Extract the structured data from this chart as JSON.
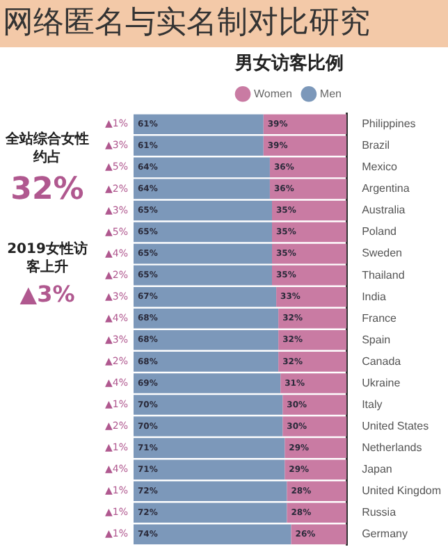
{
  "chart_data": {
    "type": "bar",
    "orientation": "horizontal",
    "stacked": true,
    "title": "网络匿名与实名制对比研究",
    "subtitle": "男女访客比例",
    "categories": [
      "Philippines",
      "Brazil",
      "Mexico",
      "Argentina",
      "Australia",
      "Poland",
      "Sweden",
      "Thailand",
      "India",
      "France",
      "Spain",
      "Canada",
      "Ukraine",
      "Italy",
      "United States",
      "Netherlands",
      "Japan",
      "United Kingdom",
      "Russia",
      "Germany"
    ],
    "series": [
      {
        "name": "Women",
        "color": "#c97ba3",
        "values": [
          39,
          39,
          36,
          36,
          35,
          35,
          35,
          35,
          33,
          32,
          32,
          32,
          31,
          30,
          30,
          29,
          29,
          28,
          28,
          26
        ],
        "value_labels": [
          "39%",
          "39%",
          "36%",
          "36%",
          "35%",
          "35%",
          "35%",
          "35%",
          "33%",
          "32%",
          "32%",
          "32%",
          "31%",
          "30%",
          "30%",
          "29%",
          "29%",
          "28%",
          "28%",
          "26%"
        ]
      },
      {
        "name": "Men",
        "color": "#7c98ba",
        "values": [
          61,
          61,
          64,
          64,
          65,
          65,
          65,
          65,
          67,
          68,
          68,
          68,
          69,
          70,
          70,
          71,
          71,
          72,
          72,
          74
        ],
        "value_labels": [
          "61%",
          "61%",
          "64%",
          "64%",
          "65%",
          "65%",
          "65%",
          "65%",
          "67%",
          "68%",
          "68%",
          "68%",
          "69%",
          "70%",
          "70%",
          "71%",
          "71%",
          "72%",
          "72%",
          "74%"
        ]
      }
    ],
    "legend": "top",
    "annotations": [
      "全站综合女性约占",
      "32%",
      "2019女性访客上升",
      "▲3%",
      "▲1%",
      "▲3%",
      "▲5%",
      "▲2%",
      "▲3%",
      "▲5%",
      "▲4%",
      "▲2%",
      "▲3%",
      "▲4%",
      "▲3%",
      "▲2%",
      "▲4%",
      "▲1%",
      "▲2%",
      "▲1%",
      "▲4%",
      "▲1%",
      "▲1%",
      "▲1%"
    ]
  }
}
